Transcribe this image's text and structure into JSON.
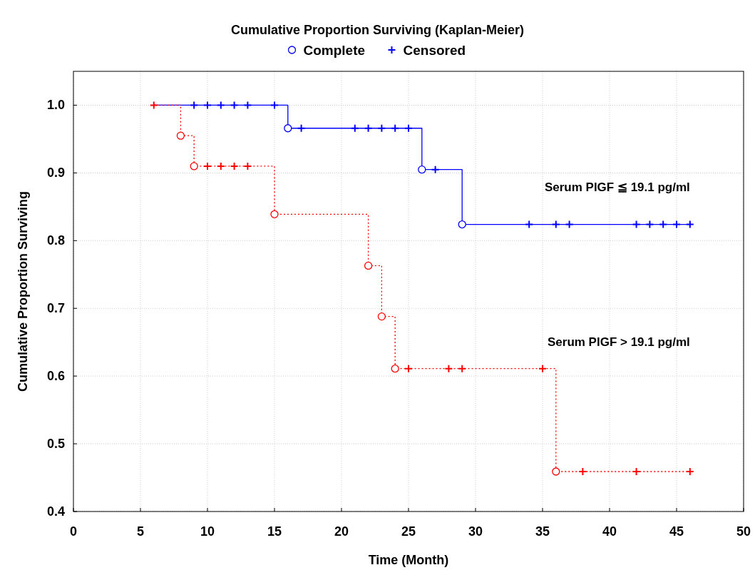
{
  "chart_data": {
    "type": "step",
    "title": "Cumulative Proportion Surviving (Kaplan-Meier)",
    "xlabel": "Time (Month)",
    "ylabel": "Cumulative Proportion Surviving",
    "xlim": [
      0,
      50
    ],
    "xticks": [
      0,
      5,
      10,
      15,
      20,
      25,
      30,
      35,
      40,
      45,
      50
    ],
    "ylim": [
      0.4,
      1.05
    ],
    "yticks": [
      {
        "value": 0.4,
        "label": "0.4"
      },
      {
        "value": 0.5,
        "label": "0.5"
      },
      {
        "value": 0.6,
        "label": "0.6"
      },
      {
        "value": 0.7,
        "label": "0.7"
      },
      {
        "value": 0.8,
        "label": "0.8"
      },
      {
        "value": 0.9,
        "label": "0.9"
      },
      {
        "value": 1,
        "label": "1.0"
      }
    ],
    "grid": true,
    "legend": "top",
    "series": [
      {
        "name": "Serum PlGF ≦ 19.1 pg/ml",
        "color": "#0000ff",
        "line_style": "solid",
        "x": [
          6,
          16,
          26,
          29,
          46
        ],
        "values": [
          1,
          0.966,
          0.905,
          0.824,
          0.824
        ]
      },
      {
        "name": "Serum PlGF > 19.1 pg/ml",
        "color": "#ff0000",
        "line_style": "dotted",
        "x": [
          6,
          8,
          9,
          15,
          22,
          23,
          24,
          36,
          46
        ],
        "values": [
          1,
          0.955,
          0.91,
          0.839,
          0.763,
          0.688,
          0.611,
          0.459,
          0.459
        ]
      },
      {
        "type": "scatter",
        "name": "Complete",
        "color": "#0000ff",
        "marker": "circle",
        "x": [
          16,
          26,
          29
        ],
        "values": [
          0.966,
          0.905,
          0.824
        ]
      },
      {
        "type": "scatter",
        "name": "Censored",
        "color": "#0000ff",
        "marker": "cross",
        "x": [
          9,
          10,
          11,
          12,
          13,
          15,
          17,
          21,
          22,
          23,
          24,
          25,
          27,
          34,
          36,
          37,
          42,
          43,
          44,
          45,
          46
        ],
        "values": [
          1,
          1,
          1,
          1,
          1,
          1,
          0.966,
          0.966,
          0.966,
          0.966,
          0.966,
          0.966,
          0.905,
          0.824,
          0.824,
          0.824,
          0.824,
          0.824,
          0.824,
          0.824,
          0.824
        ]
      },
      {
        "type": "scatter",
        "color": "#ff0000",
        "marker": "circle",
        "x": [
          8,
          9,
          15,
          22,
          23,
          24,
          36
        ],
        "values": [
          0.955,
          0.91,
          0.839,
          0.763,
          0.688,
          0.611,
          0.459
        ]
      },
      {
        "type": "scatter",
        "color": "#ff0000",
        "marker": "cross",
        "x": [
          6,
          10,
          11,
          12,
          13,
          25,
          28,
          29,
          35,
          38,
          42,
          46
        ],
        "values": [
          1,
          0.91,
          0.91,
          0.91,
          0.91,
          0.611,
          0.611,
          0.611,
          0.611,
          0.459,
          0.459,
          0.459
        ]
      }
    ]
  }
}
